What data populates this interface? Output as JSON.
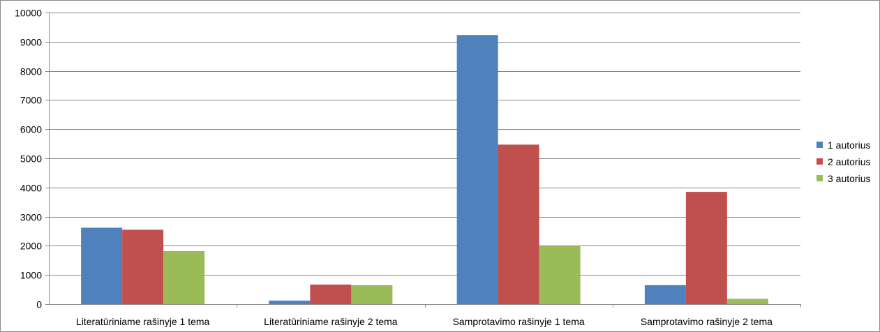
{
  "chart_data": {
    "type": "bar",
    "title": "",
    "xlabel": "",
    "ylabel": "",
    "categories": [
      "Literatūriniame rašinyje 1 tema",
      "Literatūriniame rašinyje 2 tema",
      "Samprotavimo rašinyje 1 tema",
      "Samprotavimo rašinyje 2 tema"
    ],
    "series": [
      {
        "name": "1 autorius",
        "color": "#4F81BD",
        "values": [
          2620,
          120,
          9230,
          650
        ]
      },
      {
        "name": "2 autorius",
        "color": "#C0504D",
        "values": [
          2550,
          670,
          5470,
          3850
        ]
      },
      {
        "name": "3 autorius",
        "color": "#9BBB59",
        "values": [
          1820,
          650,
          1990,
          180
        ]
      }
    ],
    "ylim": [
      0,
      10000
    ],
    "yticks": [
      0,
      1000,
      2000,
      3000,
      4000,
      5000,
      6000,
      7000,
      8000,
      9000,
      10000
    ],
    "grid": true,
    "legend_position": "right"
  }
}
